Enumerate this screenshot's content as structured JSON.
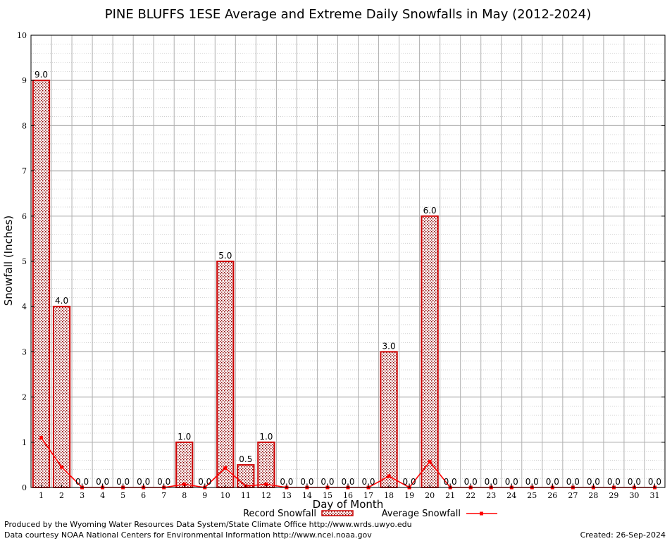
{
  "chart_data": {
    "type": "bar",
    "title": "PINE BLUFFS 1ESE Average and Extreme Daily Snowfalls in May (2012-2024)",
    "xlabel": "Day of Month",
    "ylabel": "Snowfall (Inches)",
    "ylim": [
      0,
      10
    ],
    "yticks": [
      0,
      1,
      2,
      3,
      4,
      5,
      6,
      7,
      8,
      9,
      10
    ],
    "grid": true,
    "legend_position": "bottom",
    "categories": [
      1,
      2,
      3,
      4,
      5,
      6,
      7,
      8,
      9,
      10,
      11,
      12,
      13,
      14,
      15,
      16,
      17,
      18,
      19,
      20,
      21,
      22,
      23,
      24,
      25,
      26,
      27,
      28,
      29,
      30,
      31
    ],
    "series": [
      {
        "name": "Record Snowfall",
        "kind": "bar",
        "color": "#cc0000",
        "values": [
          9.0,
          4.0,
          0.0,
          0.0,
          0.0,
          0.0,
          0.0,
          1.0,
          0.0,
          5.0,
          0.5,
          1.0,
          0.0,
          0.0,
          0.0,
          0.0,
          0.0,
          3.0,
          0.0,
          6.0,
          0.0,
          0.0,
          0.0,
          0.0,
          0.0,
          0.0,
          0.0,
          0.0,
          0.0,
          0.0,
          0.0
        ],
        "labels": [
          "9.0",
          "4.0",
          "0.0",
          "0.0",
          "0.0",
          "0.0",
          "0.0",
          "1.0",
          "0.0",
          "5.0",
          "0.5",
          "1.0",
          "0.0",
          "0.0",
          "0.0",
          "0.0",
          "0.0",
          "3.0",
          "0.0",
          "6.0",
          "0.0",
          "0.0",
          "0.0",
          "0.0",
          "0.0",
          "0.0",
          "0.0",
          "0.0",
          "0.0",
          "0.0",
          "0.0"
        ]
      },
      {
        "name": "Average Snowfall",
        "kind": "line",
        "color": "#ff0000",
        "values": [
          1.1,
          0.45,
          0.0,
          0.0,
          0.0,
          0.0,
          0.0,
          0.07,
          0.0,
          0.43,
          0.03,
          0.07,
          0.0,
          0.0,
          0.0,
          0.0,
          0.0,
          0.25,
          0.0,
          0.57,
          0.0,
          0.0,
          0.0,
          0.0,
          0.0,
          0.0,
          0.0,
          0.0,
          0.0,
          0.0,
          0.0
        ]
      }
    ]
  },
  "footer": {
    "producer": "Produced by the Wyoming Water Resources Data System/State Climate Office http://www.wrds.uwyo.edu",
    "courtesy": "Data courtesy NOAA National Centers for Environmental Information http://www.ncei.noaa.gov",
    "created": "Created:  26-Sep-2024"
  }
}
